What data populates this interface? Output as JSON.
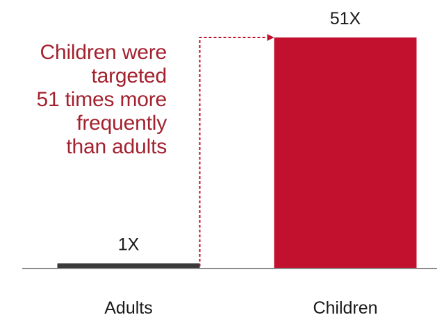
{
  "chart_data": {
    "type": "bar",
    "categories": [
      "Adults",
      "Children"
    ],
    "values": [
      1,
      51
    ],
    "data_labels": [
      "1X",
      "51X"
    ],
    "annotation": [
      "Children were",
      "targeted",
      "51 times more",
      "frequently",
      "than adults"
    ],
    "ylim": [
      0,
      51
    ],
    "grid": false,
    "legend": "none",
    "colors": {
      "Adults": "#3a3a3a",
      "Children": "#c1112f",
      "annotation_text": "#a3222f",
      "arrow": "#c1112f",
      "axis": "#8c8c8c",
      "labels": "#1a1a1a"
    }
  }
}
